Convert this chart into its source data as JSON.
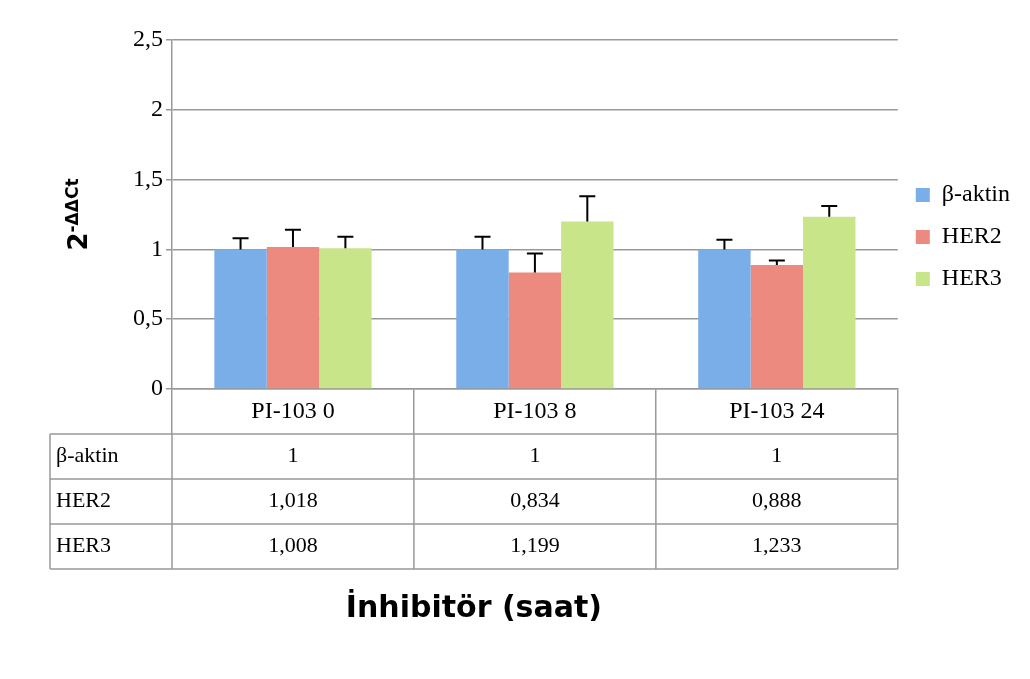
{
  "chart_data": {
    "type": "bar",
    "annotations": [
      "İnhibitör (saat)"
    ],
    "ylabel": "2$^{-ΔΔCt}$",
    "categories": [
      "PI-103 0",
      "PI-103 8",
      "PI-103 24"
    ],
    "series": [
      {
        "name": "β-aktin",
        "color": "#7aaee8",
        "values": [
          1,
          1,
          1
        ],
        "value_labels": [
          "1",
          "1",
          "1"
        ],
        "errors": [
          [
            1,
            1.08
          ],
          [
            1,
            1.09
          ],
          [
            1,
            1.07
          ]
        ]
      },
      {
        "name": "HER2",
        "color": "#ec8a80",
        "values": [
          1.018,
          0.834,
          0.888
        ],
        "value_labels": [
          "1,018",
          "0,834",
          "0,888"
        ],
        "errors": [
          [
            1.018,
            1.14
          ],
          [
            0.834,
            0.97
          ],
          [
            0.888,
            0.92
          ]
        ]
      },
      {
        "name": "HER3",
        "color": "#c8e58a",
        "values": [
          1.008,
          1.199,
          1.233
        ],
        "value_labels": [
          "1,008",
          "1,199",
          "1,233"
        ],
        "errors": [
          [
            1.008,
            1.09
          ],
          [
            1.199,
            1.38
          ],
          [
            1.233,
            1.31
          ]
        ]
      }
    ],
    "ylim": [
      0,
      2.5
    ],
    "yticks": [
      {
        "value": 0,
        "label": "0"
      },
      {
        "value": 0.5,
        "label": "0,5"
      },
      {
        "value": 1,
        "label": "1"
      },
      {
        "value": 1.5,
        "label": "1,5"
      },
      {
        "value": 2,
        "label": "2"
      },
      {
        "value": 2.5,
        "label": "2,5"
      }
    ],
    "grid": "y",
    "legend": "right"
  }
}
